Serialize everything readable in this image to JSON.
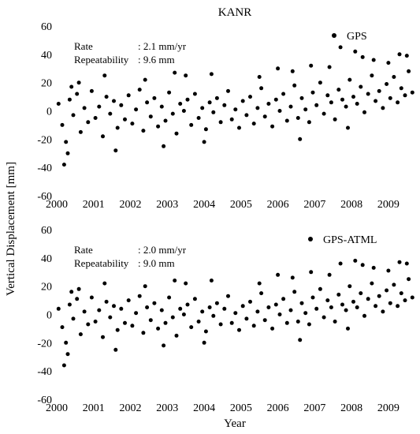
{
  "figure": {
    "title": "KANR",
    "ylabel": "Vertical Displacement [mm]",
    "xlabel": "Year"
  },
  "chart_data": [
    {
      "type": "scatter",
      "title": "KANR",
      "xlabel": "",
      "ylabel": "Vertical Displacement [mm]",
      "xlim": [
        2000,
        2009.75
      ],
      "ylim": [
        -60,
        60
      ],
      "x_ticks": [
        "2000",
        "2001",
        "2002",
        "2003",
        "2004",
        "2005",
        "2006",
        "2007",
        "2008",
        "2009"
      ],
      "y_ticks": [
        "-60",
        "-40",
        "-20",
        "0",
        "20",
        "40",
        "60"
      ],
      "grid": false,
      "legend": {
        "label": "GPS",
        "position": "top-right"
      },
      "annotations": [
        {
          "label": "Rate",
          "value": ": 2.1 mm/yr"
        },
        {
          "label": "Repeatability",
          "value": ": 9.6 mm"
        }
      ],
      "series": [
        {
          "name": "GPS",
          "x": [
            2000.05,
            2000.15,
            2000.25,
            2000.35,
            2000.45,
            2000.55,
            2000.65,
            2000.75,
            2000.85,
            2000.95,
            2001.05,
            2001.15,
            2001.25,
            2001.35,
            2001.45,
            2001.55,
            2001.65,
            2001.75,
            2001.85,
            2001.95,
            2002.05,
            2002.15,
            2002.25,
            2002.35,
            2002.45,
            2002.55,
            2002.65,
            2002.75,
            2002.85,
            2002.95,
            2003.05,
            2003.15,
            2003.25,
            2003.35,
            2003.45,
            2003.55,
            2003.65,
            2003.75,
            2003.85,
            2003.95,
            2004.05,
            2004.15,
            2004.25,
            2004.35,
            2004.45,
            2004.55,
            2004.65,
            2004.75,
            2004.85,
            2004.95,
            2005.05,
            2005.15,
            2005.25,
            2005.35,
            2005.45,
            2005.55,
            2005.65,
            2005.75,
            2005.85,
            2005.95,
            2006.05,
            2006.15,
            2006.25,
            2006.35,
            2006.45,
            2006.55,
            2006.65,
            2006.75,
            2006.85,
            2006.95,
            2007.05,
            2007.15,
            2007.25,
            2007.35,
            2007.45,
            2007.55,
            2007.65,
            2007.75,
            2007.85,
            2007.95,
            2008.05,
            2008.15,
            2008.25,
            2008.35,
            2008.45,
            2008.55,
            2008.65,
            2008.75,
            2008.85,
            2008.95,
            2009.05,
            2009.15,
            2009.25,
            2009.35,
            2009.45,
            2009.55,
            2009.65,
            2000.2,
            2000.3,
            2000.4,
            2000.6,
            2001.3,
            2001.6,
            2002.4,
            2002.9,
            2003.2,
            2003.5,
            2004.0,
            2004.2,
            2005.5,
            2006.0,
            2006.4,
            2006.6,
            2006.9,
            2007.4,
            2007.7,
            2007.9,
            2008.1,
            2008.3,
            2008.6,
            2009.0,
            2009.3,
            2009.5
          ],
          "y": [
            5,
            -10,
            -22,
            8,
            -3,
            12,
            -15,
            2,
            -8,
            14,
            -5,
            3,
            -18,
            10,
            -2,
            7,
            -12,
            4,
            -6,
            11,
            -9,
            1,
            15,
            -14,
            6,
            -4,
            9,
            -11,
            3,
            -7,
            13,
            -2,
            -16,
            5,
            0,
            8,
            -10,
            12,
            -5,
            2,
            -13,
            6,
            -1,
            9,
            -8,
            4,
            14,
            -6,
            1,
            -12,
            7,
            -3,
            10,
            -9,
            2,
            16,
            -4,
            5,
            -11,
            8,
            0,
            12,
            -7,
            3,
            18,
            -5,
            9,
            1,
            -8,
            13,
            4,
            20,
            -2,
            11,
            6,
            -6,
            15,
            8,
            3,
            22,
            10,
            5,
            17,
            -1,
            12,
            25,
            7,
            14,
            2,
            19,
            9,
            24,
            6,
            16,
            11,
            28,
            13,
            -38,
            -30,
            17,
            20,
            25,
            -28,
            22,
            -25,
            27,
            25,
            -22,
            26,
            24,
            30,
            28,
            -20,
            32,
            31,
            45,
            -12,
            42,
            38,
            36,
            34,
            40,
            39
          ]
        }
      ]
    },
    {
      "type": "scatter",
      "title": "",
      "xlabel": "Year",
      "ylabel": "Vertical Displacement [mm]",
      "xlim": [
        2000,
        2009.75
      ],
      "ylim": [
        -60,
        60
      ],
      "x_ticks": [
        "2000",
        "2001",
        "2002",
        "2003",
        "2004",
        "2005",
        "2006",
        "2007",
        "2008",
        "2009"
      ],
      "y_ticks": [
        "-60",
        "-40",
        "-20",
        "0",
        "20",
        "40",
        "60"
      ],
      "grid": false,
      "legend": {
        "label": "GPS-ATML",
        "position": "top-right"
      },
      "annotations": [
        {
          "label": "Rate",
          "value": ": 2.0 mm/yr"
        },
        {
          "label": "Repeatability",
          "value": ": 9.0 mm"
        }
      ],
      "series": [
        {
          "name": "GPS-ATML",
          "x": [
            2000.05,
            2000.15,
            2000.25,
            2000.35,
            2000.45,
            2000.55,
            2000.65,
            2000.75,
            2000.85,
            2000.95,
            2001.05,
            2001.15,
            2001.25,
            2001.35,
            2001.45,
            2001.55,
            2001.65,
            2001.75,
            2001.85,
            2001.95,
            2002.05,
            2002.15,
            2002.25,
            2002.35,
            2002.45,
            2002.55,
            2002.65,
            2002.75,
            2002.85,
            2002.95,
            2003.05,
            2003.15,
            2003.25,
            2003.35,
            2003.45,
            2003.55,
            2003.65,
            2003.75,
            2003.85,
            2003.95,
            2004.05,
            2004.15,
            2004.25,
            2004.35,
            2004.45,
            2004.55,
            2004.65,
            2004.75,
            2004.85,
            2004.95,
            2005.05,
            2005.15,
            2005.25,
            2005.35,
            2005.45,
            2005.55,
            2005.65,
            2005.75,
            2005.85,
            2005.95,
            2006.05,
            2006.15,
            2006.25,
            2006.35,
            2006.45,
            2006.55,
            2006.65,
            2006.75,
            2006.85,
            2006.95,
            2007.05,
            2007.15,
            2007.25,
            2007.35,
            2007.45,
            2007.55,
            2007.65,
            2007.75,
            2007.85,
            2007.95,
            2008.05,
            2008.15,
            2008.25,
            2008.35,
            2008.45,
            2008.55,
            2008.65,
            2008.75,
            2008.85,
            2008.95,
            2009.05,
            2009.15,
            2009.25,
            2009.35,
            2009.45,
            2009.55,
            2009.65,
            2000.2,
            2000.3,
            2000.4,
            2000.6,
            2001.3,
            2001.6,
            2002.4,
            2002.9,
            2003.2,
            2003.5,
            2004.0,
            2004.2,
            2005.5,
            2006.0,
            2006.4,
            2006.6,
            2006.9,
            2007.4,
            2007.7,
            2007.9,
            2008.1,
            2008.3,
            2008.6,
            2009.0,
            2009.3,
            2009.5
          ],
          "y": [
            4,
            -9,
            -20,
            7,
            -3,
            11,
            -14,
            2,
            -7,
            12,
            -5,
            3,
            -16,
            9,
            -2,
            6,
            -11,
            4,
            -6,
            10,
            -8,
            1,
            13,
            -13,
            5,
            -4,
            8,
            -10,
            3,
            -6,
            12,
            -2,
            -15,
            4,
            0,
            7,
            -9,
            11,
            -5,
            2,
            -12,
            5,
            -1,
            8,
            -7,
            4,
            13,
            -6,
            1,
            -11,
            6,
            -3,
            9,
            -8,
            2,
            15,
            -4,
            5,
            -10,
            7,
            0,
            11,
            -6,
            3,
            16,
            -5,
            8,
            1,
            -7,
            12,
            4,
            18,
            -2,
            10,
            5,
            -5,
            14,
            7,
            3,
            20,
            9,
            5,
            15,
            -1,
            11,
            22,
            6,
            13,
            2,
            17,
            8,
            21,
            6,
            15,
            10,
            25,
            12,
            -36,
            -28,
            16,
            18,
            22,
            -25,
            20,
            -22,
            24,
            22,
            -20,
            24,
            22,
            28,
            26,
            -18,
            30,
            28,
            36,
            -10,
            38,
            35,
            33,
            31,
            37,
            36
          ]
        }
      ]
    }
  ]
}
